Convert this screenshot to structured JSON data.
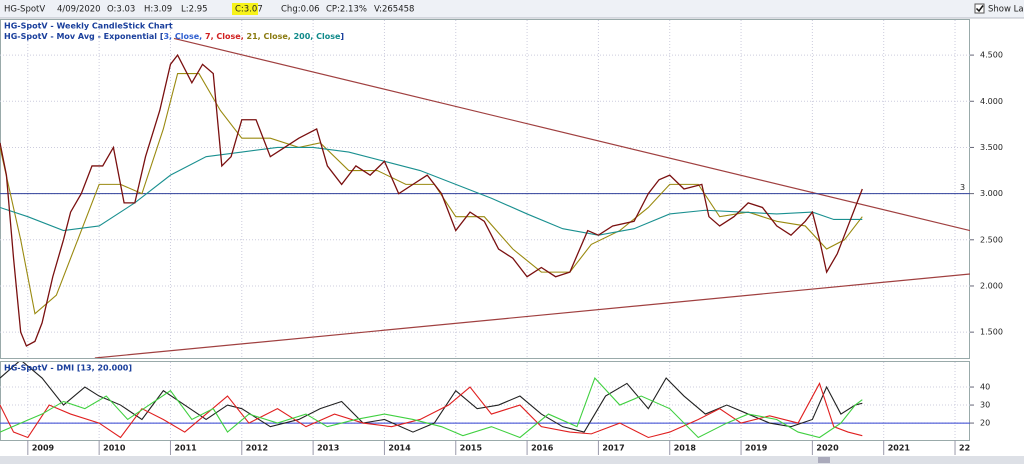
{
  "toolbar": {
    "symbol": "HG-SpotV",
    "date": "4/09/2020",
    "open": "O:3.03",
    "high": "H:3.09",
    "low": "L:2.95",
    "close": "C:3.07",
    "change": "Chg:0.06",
    "change_pct": "CP:2.13%",
    "volume": "V:265458",
    "show_last": {
      "label": "Show Last",
      "checked": true
    }
  },
  "chart_data": [
    {
      "type": "line",
      "title": "HG-SpotV - Weekly CandleStick Chart",
      "legend_text": [
        {
          "text": "HG-SpotV - Mov Avg - Exponential [",
          "color": "#1a3f9c"
        },
        {
          "text": "3, Close, ",
          "color": "#3060d0"
        },
        {
          "text": "7, Close, ",
          "color": "#d02020"
        },
        {
          "text": "21, Close, ",
          "color": "#8a7a10"
        },
        {
          "text": "200, Close",
          "color": "#108a8a"
        },
        {
          "text": "]",
          "color": "#1a3f9c"
        }
      ],
      "color": "#7a1010",
      "x": [
        2008.61,
        2008.7,
        2008.8,
        2008.9,
        2008.98,
        2009.1,
        2009.2,
        2009.35,
        2009.5,
        2009.6,
        2009.75,
        2009.9,
        2010.05,
        2010.2,
        2010.35,
        2010.5,
        2010.65,
        2010.85,
        2011.0,
        2011.1,
        2011.3,
        2011.45,
        2011.6,
        2011.72,
        2011.85,
        2012.0,
        2012.2,
        2012.4,
        2012.6,
        2012.8,
        2013.05,
        2013.2,
        2013.4,
        2013.6,
        2013.8,
        2014.0,
        2014.2,
        2014.4,
        2014.6,
        2014.8,
        2015.0,
        2015.2,
        2015.4,
        2015.6,
        2015.8,
        2016.0,
        2016.2,
        2016.4,
        2016.6,
        2016.85,
        2017.0,
        2017.2,
        2017.5,
        2017.7,
        2017.85,
        2018.0,
        2018.2,
        2018.45,
        2018.55,
        2018.7,
        2018.9,
        2019.1,
        2019.3,
        2019.5,
        2019.7,
        2019.9,
        2020.0,
        2020.1,
        2020.2,
        2020.35,
        2020.5,
        2020.6,
        2020.7
      ],
      "values": [
        3.55,
        3.2,
        2.3,
        1.5,
        1.35,
        1.4,
        1.6,
        2.1,
        2.5,
        2.8,
        3.0,
        3.3,
        3.3,
        3.5,
        2.9,
        2.9,
        3.4,
        3.9,
        4.4,
        4.5,
        4.2,
        4.4,
        4.3,
        3.3,
        3.4,
        3.8,
        3.8,
        3.4,
        3.5,
        3.6,
        3.7,
        3.3,
        3.1,
        3.3,
        3.2,
        3.35,
        3.0,
        3.1,
        3.2,
        3.0,
        2.6,
        2.8,
        2.7,
        2.4,
        2.3,
        2.1,
        2.2,
        2.1,
        2.15,
        2.6,
        2.55,
        2.65,
        2.7,
        3.0,
        3.15,
        3.2,
        3.05,
        3.1,
        2.75,
        2.65,
        2.75,
        2.9,
        2.85,
        2.65,
        2.55,
        2.7,
        2.8,
        2.5,
        2.15,
        2.35,
        2.65,
        2.85,
        3.05
      ],
      "series": [
        {
          "color": "#9a8a10",
          "x": [
            2008.61,
            2008.9,
            2009.1,
            2009.4,
            2009.7,
            2010.0,
            2010.3,
            2010.6,
            2010.9,
            2011.1,
            2011.4,
            2011.7,
            2012.0,
            2012.4,
            2012.8,
            2013.1,
            2013.5,
            2013.9,
            2014.3,
            2014.7,
            2015.0,
            2015.4,
            2015.8,
            2016.2,
            2016.6,
            2016.9,
            2017.3,
            2017.7,
            2018.0,
            2018.4,
            2018.7,
            2019.1,
            2019.5,
            2019.9,
            2020.2,
            2020.45,
            2020.7
          ],
          "values": [
            3.5,
            2.5,
            1.7,
            1.9,
            2.5,
            3.1,
            3.1,
            3.0,
            3.7,
            4.3,
            4.3,
            3.9,
            3.6,
            3.6,
            3.5,
            3.55,
            3.25,
            3.25,
            3.1,
            3.1,
            2.75,
            2.75,
            2.4,
            2.15,
            2.15,
            2.45,
            2.6,
            2.85,
            3.1,
            3.1,
            2.75,
            2.8,
            2.7,
            2.65,
            2.4,
            2.5,
            2.75
          ]
        },
        {
          "color": "#1a9090",
          "x": [
            2008.61,
            2009.0,
            2009.5,
            2010.0,
            2010.5,
            2011.0,
            2011.5,
            2012.0,
            2012.5,
            2013.0,
            2013.5,
            2014.0,
            2014.5,
            2015.0,
            2015.5,
            2016.0,
            2016.5,
            2017.0,
            2017.5,
            2018.0,
            2018.5,
            2019.0,
            2019.5,
            2020.0,
            2020.3,
            2020.7
          ],
          "values": [
            2.85,
            2.75,
            2.6,
            2.65,
            2.9,
            3.2,
            3.4,
            3.45,
            3.5,
            3.5,
            3.45,
            3.35,
            3.25,
            3.1,
            2.95,
            2.78,
            2.62,
            2.55,
            2.62,
            2.78,
            2.82,
            2.8,
            2.78,
            2.8,
            2.72,
            2.72
          ]
        }
      ],
      "annotations": [
        {
          "type": "trendline",
          "x": [
            2011.05,
            2022.21
          ],
          "y": [
            4.68,
            2.6
          ],
          "color": "#a04040"
        },
        {
          "type": "trendline",
          "x": [
            2009.94,
            2022.21
          ],
          "y": [
            1.22,
            2.13
          ],
          "color": "#a04040"
        },
        {
          "type": "hline",
          "y": 3,
          "label": "3",
          "color": "#30409a"
        }
      ],
      "xlim": [
        2008.61,
        2022.21
      ],
      "xticks": [
        2009,
        2010,
        2011,
        2012,
        2013,
        2014,
        2015,
        2016,
        2017,
        2018,
        2019,
        2020,
        2021,
        2022
      ],
      "ylim": [
        1.22,
        4.88
      ],
      "yticks": [
        {
          "value": 1.5,
          "label": "1.500"
        },
        {
          "value": 2,
          "label": "2.000"
        },
        {
          "value": 2.5,
          "label": "2.500"
        },
        {
          "value": 3,
          "label": "3.000"
        },
        {
          "value": 3.5,
          "label": "3.500"
        },
        {
          "value": 4,
          "label": "4.000"
        },
        {
          "value": 4.5,
          "label": "4.500"
        }
      ],
      "grid": true
    },
    {
      "type": "line",
      "title": "HG-SpotV - DMI [13, 20.000]",
      "series": [
        {
          "color": "#222222",
          "x": [
            2008.61,
            2008.9,
            2009.2,
            2009.5,
            2009.8,
            2010.0,
            2010.3,
            2010.6,
            2010.9,
            2011.2,
            2011.5,
            2011.8,
            2012.0,
            2012.4,
            2012.8,
            2013.1,
            2013.4,
            2013.7,
            2014.0,
            2014.4,
            2014.7,
            2015.0,
            2015.3,
            2015.6,
            2015.9,
            2016.2,
            2016.5,
            2016.8,
            2017.1,
            2017.4,
            2017.7,
            2017.95,
            2018.2,
            2018.5,
            2018.8,
            2019.1,
            2019.4,
            2019.7,
            2020.0,
            2020.2,
            2020.4,
            2020.6,
            2020.7
          ],
          "values": [
            45,
            55,
            45,
            30,
            40,
            35,
            30,
            22,
            38,
            30,
            22,
            30,
            28,
            18,
            22,
            28,
            32,
            20,
            22,
            15,
            20,
            38,
            28,
            30,
            35,
            25,
            18,
            15,
            35,
            42,
            28,
            45,
            35,
            25,
            30,
            25,
            20,
            18,
            22,
            40,
            25,
            30,
            31
          ]
        },
        {
          "color": "#e02020",
          "x": [
            2008.61,
            2008.8,
            2009.0,
            2009.3,
            2009.6,
            2010.0,
            2010.3,
            2010.6,
            2010.9,
            2011.2,
            2011.5,
            2011.8,
            2012.1,
            2012.5,
            2012.9,
            2013.3,
            2013.7,
            2014.1,
            2014.5,
            2014.9,
            2015.2,
            2015.5,
            2015.9,
            2016.2,
            2016.6,
            2016.9,
            2017.3,
            2017.7,
            2018.0,
            2018.4,
            2018.7,
            2019.0,
            2019.4,
            2019.8,
            2020.1,
            2020.3,
            2020.5,
            2020.7
          ],
          "values": [
            30,
            15,
            12,
            30,
            25,
            20,
            12,
            28,
            22,
            15,
            25,
            35,
            20,
            28,
            18,
            25,
            20,
            18,
            22,
            30,
            40,
            25,
            30,
            18,
            15,
            14,
            20,
            12,
            15,
            22,
            28,
            20,
            24,
            20,
            42,
            18,
            15,
            13
          ]
        },
        {
          "color": "#40d040",
          "x": [
            2008.61,
            2008.9,
            2009.2,
            2009.5,
            2009.8,
            2010.1,
            2010.4,
            2010.7,
            2011.0,
            2011.3,
            2011.6,
            2011.8,
            2012.1,
            2012.5,
            2012.9,
            2013.2,
            2013.6,
            2014.0,
            2014.4,
            2014.8,
            2015.1,
            2015.5,
            2015.9,
            2016.3,
            2016.7,
            2016.95,
            2017.3,
            2017.6,
            2018.0,
            2018.4,
            2018.8,
            2019.1,
            2019.5,
            2019.8,
            2020.1,
            2020.4,
            2020.6,
            2020.7
          ],
          "values": [
            15,
            20,
            25,
            32,
            28,
            35,
            22,
            30,
            38,
            22,
            28,
            15,
            25,
            20,
            25,
            18,
            22,
            25,
            22,
            18,
            13,
            18,
            12,
            25,
            18,
            45,
            30,
            35,
            28,
            12,
            20,
            25,
            22,
            15,
            12,
            20,
            30,
            33
          ]
        }
      ],
      "annotations": [
        {
          "type": "hline",
          "y": 20,
          "color": "#3040d0"
        }
      ],
      "xlim": [
        2008.61,
        2022.21
      ],
      "xticks": [
        2009,
        2010,
        2011,
        2012,
        2013,
        2014,
        2015,
        2016,
        2017,
        2018,
        2019,
        2020,
        2021,
        {
          "value": 2022,
          "label": "22"
        }
      ],
      "ylim": [
        10.6,
        53.9
      ],
      "yticks": [
        20,
        30,
        40
      ],
      "grid": true
    }
  ]
}
